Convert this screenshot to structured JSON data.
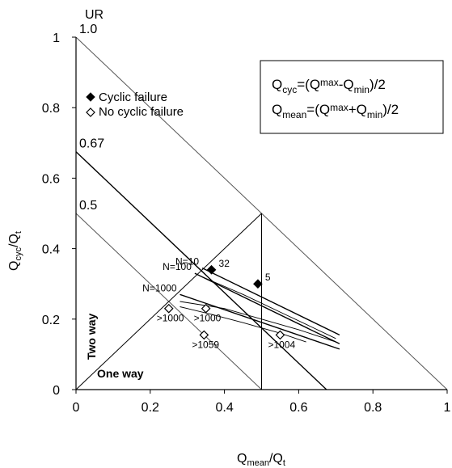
{
  "chart_data": {
    "type": "scatter",
    "xlabel": {
      "main": "Q",
      "sub": "mean",
      "tail": "/Q",
      "tailsub": "t"
    },
    "ylabel": {
      "main": "Q",
      "sub": "cyc",
      "tail": "/Q",
      "tailsub": "t"
    },
    "xlim": [
      0,
      1
    ],
    "ylim": [
      0,
      1
    ],
    "xticks": [
      "0",
      "0.2",
      "0.4",
      "0.6",
      "0.8",
      "1"
    ],
    "yticks": [
      "0",
      "0.2",
      "0.4",
      "0.6",
      "0.8",
      "1"
    ],
    "grid": false,
    "legend_position": "upper-left",
    "series": [
      {
        "name": "Cyclic failure",
        "marker": "filled-diamond",
        "points": [
          {
            "x": 0.365,
            "y": 0.34,
            "label": "32"
          },
          {
            "x": 0.49,
            "y": 0.3,
            "label": "5"
          }
        ]
      },
      {
        "name": "No cyclic failure",
        "marker": "open-diamond",
        "points": [
          {
            "x": 0.25,
            "y": 0.23,
            "label": ">1000"
          },
          {
            "x": 0.35,
            "y": 0.23,
            "label": ">1000"
          },
          {
            "x": 0.345,
            "y": 0.155,
            "label": ">1059"
          },
          {
            "x": 0.55,
            "y": 0.155,
            "label": ">1004"
          }
        ]
      }
    ],
    "ur_lines": [
      {
        "value": 1.0,
        "label": "1.0",
        "x": [
          0,
          1
        ],
        "y": [
          1,
          0
        ]
      },
      {
        "value": 0.67,
        "label": "0.67",
        "x": [
          0,
          0.675
        ],
        "y": [
          0.675,
          0
        ]
      },
      {
        "value": 0.5,
        "label": "0.5",
        "x": [
          0,
          0.5
        ],
        "y": [
          0.5,
          0
        ]
      }
    ],
    "ur_header": "UR",
    "boundary_line": {
      "x": [
        0,
        0.5
      ],
      "y": [
        0,
        0.5
      ]
    },
    "contours": [
      {
        "label": "N=10",
        "x": [
          0.34,
          0.71
        ],
        "y": [
          0.345,
          0.155
        ]
      },
      {
        "label": "N=100",
        "x": [
          0.32,
          0.71
        ],
        "y": [
          0.33,
          0.13
        ]
      },
      {
        "label": "N=1000",
        "x": [
          0.28,
          0.71
        ],
        "y": [
          0.27,
          0.115
        ]
      }
    ],
    "extra_curves": [
      {
        "x": [
          0.34,
          0.45,
          0.55,
          0.63,
          0.7
        ],
        "y": [
          0.32,
          0.27,
          0.22,
          0.18,
          0.145
        ]
      },
      {
        "x": [
          0.28,
          0.4,
          0.5,
          0.6,
          0.7
        ],
        "y": [
          0.25,
          0.23,
          0.2,
          0.17,
          0.135
        ]
      },
      {
        "x": [
          0.28,
          0.36,
          0.45,
          0.55,
          0.62
        ],
        "y": [
          0.235,
          0.215,
          0.19,
          0.16,
          0.135
        ]
      }
    ],
    "regions": {
      "two_way": "Two way",
      "one_way": "One way"
    },
    "formula_box": {
      "line1": {
        "lhs": "Q",
        "lhs_sub": "cyc",
        "eq": "=(Q",
        "a_sub": "max",
        "mid": "-Q",
        "b_sub": "min",
        "end": ")/2"
      },
      "line2": {
        "lhs": "Q",
        "lhs_sub": "mean",
        "eq": "=(Q",
        "a_sub": "max",
        "mid": "+Q",
        "b_sub": "min",
        "end": ")/2"
      }
    }
  }
}
